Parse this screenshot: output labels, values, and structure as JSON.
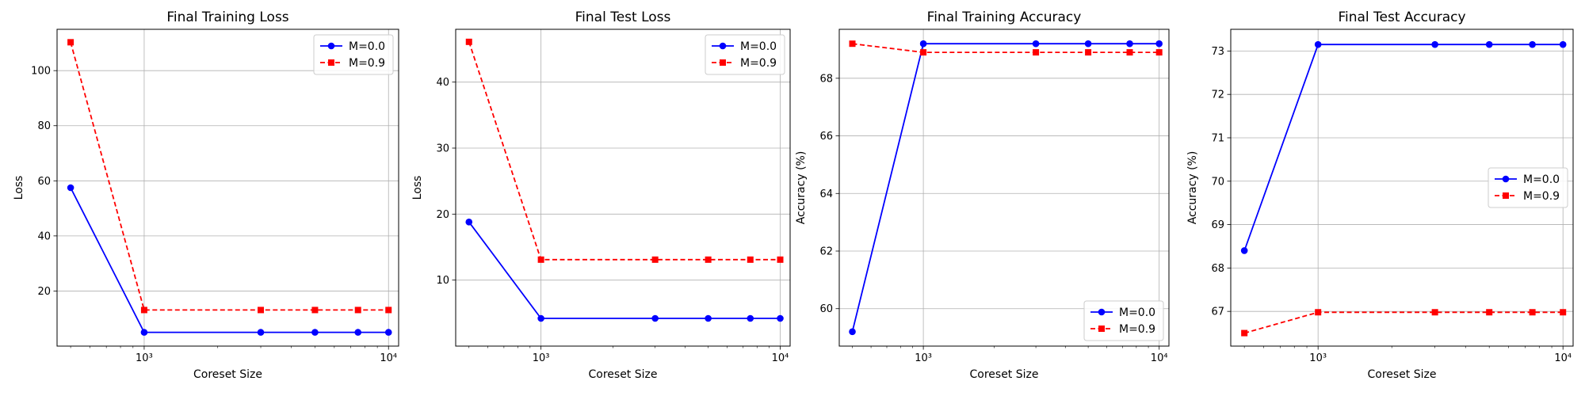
{
  "chart_data": [
    {
      "type": "line",
      "title": "Final Training Loss",
      "xlabel": "Coreset Size",
      "ylabel": "Loss",
      "xscale": "log",
      "xlim": [
        440,
        11000
      ],
      "ylim": [
        0,
        115
      ],
      "xticks": [
        {
          "value": 1000,
          "label": "10³"
        },
        {
          "value": 10000,
          "label": "10⁴"
        }
      ],
      "yticks": [
        20,
        40,
        60,
        80,
        100
      ],
      "grid": true,
      "legend_loc": "upper right",
      "x": [
        500,
        1000,
        3000,
        5000,
        7500,
        10000
      ],
      "series": [
        {
          "name": "M=0.0",
          "color": "#0000ff",
          "style": "solid",
          "marker": "circle",
          "values": [
            57.5,
            5.0,
            5.0,
            5.0,
            5.0,
            5.0
          ]
        },
        {
          "name": "M=0.9",
          "color": "#ff0000",
          "style": "dashed",
          "marker": "square",
          "values": [
            110.3,
            13.1,
            13.1,
            13.1,
            13.1,
            13.1
          ]
        }
      ]
    },
    {
      "type": "line",
      "title": "Final Test Loss",
      "xlabel": "Coreset Size",
      "ylabel": "Loss",
      "xscale": "log",
      "xlim": [
        440,
        11000
      ],
      "ylim": [
        0,
        48
      ],
      "xticks": [
        {
          "value": 1000,
          "label": "10³"
        },
        {
          "value": 10000,
          "label": "10⁴"
        }
      ],
      "yticks": [
        10,
        20,
        30,
        40
      ],
      "grid": true,
      "legend_loc": "upper right",
      "x": [
        500,
        1000,
        3000,
        5000,
        7500,
        10000
      ],
      "series": [
        {
          "name": "M=0.0",
          "color": "#0000ff",
          "style": "solid",
          "marker": "circle",
          "values": [
            18.8,
            4.2,
            4.2,
            4.2,
            4.2,
            4.2
          ]
        },
        {
          "name": "M=0.9",
          "color": "#ff0000",
          "style": "dashed",
          "marker": "square",
          "values": [
            46.1,
            13.1,
            13.1,
            13.1,
            13.1,
            13.1
          ]
        }
      ]
    },
    {
      "type": "line",
      "title": "Final Training Accuracy",
      "xlabel": "Coreset Size",
      "ylabel": "Accuracy (%)",
      "xscale": "log",
      "xlim": [
        440,
        11000
      ],
      "ylim": [
        58.7,
        69.7
      ],
      "xticks": [
        {
          "value": 1000,
          "label": "10³"
        },
        {
          "value": 10000,
          "label": "10⁴"
        }
      ],
      "yticks": [
        60,
        62,
        64,
        66,
        68
      ],
      "grid": true,
      "legend_loc": "lower right",
      "x": [
        500,
        1000,
        3000,
        5000,
        7500,
        10000
      ],
      "series": [
        {
          "name": "M=0.0",
          "color": "#0000ff",
          "style": "solid",
          "marker": "circle",
          "values": [
            59.2,
            69.2,
            69.2,
            69.2,
            69.2,
            69.2
          ]
        },
        {
          "name": "M=0.9",
          "color": "#ff0000",
          "style": "dashed",
          "marker": "square",
          "values": [
            69.2,
            68.9,
            68.9,
            68.9,
            68.9,
            68.9
          ]
        }
      ]
    },
    {
      "type": "line",
      "title": "Final Test Accuracy",
      "xlabel": "Coreset Size",
      "ylabel": "Accuracy (%)",
      "xscale": "log",
      "xlim": [
        440,
        11000
      ],
      "ylim": [
        66.2,
        73.5
      ],
      "xticks": [
        {
          "value": 1000,
          "label": "10³"
        },
        {
          "value": 10000,
          "label": "10⁴"
        }
      ],
      "yticks": [
        67,
        68,
        69,
        70,
        71,
        72,
        73
      ],
      "grid": true,
      "legend_loc": "center right",
      "x": [
        500,
        1000,
        3000,
        5000,
        7500,
        10000
      ],
      "series": [
        {
          "name": "M=0.0",
          "color": "#0000ff",
          "style": "solid",
          "marker": "circle",
          "values": [
            68.4,
            73.15,
            73.15,
            73.15,
            73.15,
            73.15
          ]
        },
        {
          "name": "M=0.9",
          "color": "#ff0000",
          "style": "dashed",
          "marker": "square",
          "values": [
            66.5,
            66.98,
            66.98,
            66.98,
            66.98,
            66.98
          ]
        }
      ]
    }
  ]
}
